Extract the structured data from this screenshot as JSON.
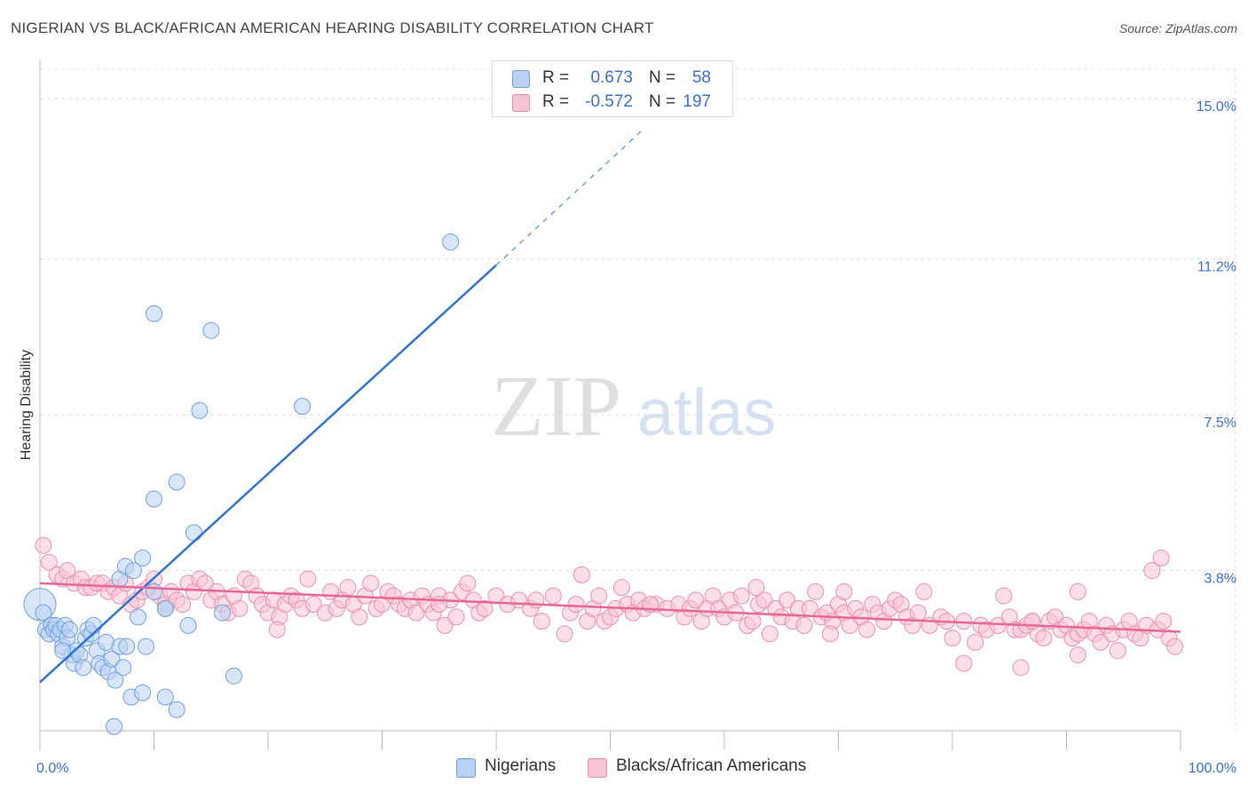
{
  "title": "NIGERIAN VS BLACK/AFRICAN AMERICAN HEARING DISABILITY CORRELATION CHART",
  "source": "Source: ZipAtlas.com",
  "watermark": {
    "zip": "ZIP",
    "atlas": "atlas"
  },
  "colors": {
    "blue_fill": "#b9d1f3",
    "blue_stroke": "#6f9fdf",
    "blue_line": "#2e74d6",
    "pink_fill": "#f7c4d5",
    "pink_stroke": "#ea8eac",
    "pink_line": "#e8679a",
    "tick_text": "#3a6fd0",
    "grid": "#dddddd"
  },
  "stats": [
    {
      "r_label": "R =",
      "r_value": "0.673",
      "n_label": "N =",
      "n_value": "58"
    },
    {
      "r_label": "R =",
      "r_value": "-0.572",
      "n_label": "N =",
      "n_value": "197"
    }
  ],
  "legend": [
    "Nigerians",
    "Blacks/African Americans"
  ],
  "chart_data": {
    "type": "scatter",
    "title": "NIGERIAN VS BLACK/AFRICAN AMERICAN HEARING DISABILITY CORRELATION CHART",
    "xlabel": "",
    "ylabel": "Hearing Disability",
    "xlim": [
      0,
      100
    ],
    "ylim": [
      0,
      15.7
    ],
    "x_tick_labels": [
      "0.0%",
      "100.0%"
    ],
    "y_ticks": [
      3.8,
      7.5,
      11.2,
      15.0
    ],
    "y_tick_labels": [
      "3.8%",
      "7.5%",
      "11.2%",
      "15.0%"
    ],
    "grid": true,
    "series": [
      {
        "name": "Nigerians",
        "trend": {
          "x0": 0,
          "y0": 1.15,
          "x1": 40,
          "y1": 11.05,
          "dash_to_x": 53,
          "dash_to_y": 14.3
        },
        "points": [
          [
            0,
            3.0
          ],
          [
            0.3,
            2.8
          ],
          [
            0.5,
            2.4
          ],
          [
            0.8,
            2.3
          ],
          [
            1.0,
            2.5
          ],
          [
            1.2,
            2.4
          ],
          [
            1.4,
            2.5
          ],
          [
            1.6,
            2.3
          ],
          [
            1.8,
            2.4
          ],
          [
            2.0,
            2.0
          ],
          [
            2.2,
            2.5
          ],
          [
            2.4,
            2.2
          ],
          [
            2.6,
            2.4
          ],
          [
            2.8,
            1.8
          ],
          [
            3.0,
            1.6
          ],
          [
            3.2,
            1.9
          ],
          [
            3.5,
            1.8
          ],
          [
            3.8,
            1.5
          ],
          [
            4.0,
            2.2
          ],
          [
            4.2,
            2.4
          ],
          [
            4.5,
            2.3
          ],
          [
            4.7,
            2.5
          ],
          [
            5.0,
            1.9
          ],
          [
            5.2,
            1.6
          ],
          [
            5.5,
            1.5
          ],
          [
            5.8,
            2.1
          ],
          [
            6.0,
            1.4
          ],
          [
            6.3,
            1.7
          ],
          [
            6.6,
            1.2
          ],
          [
            7.0,
            2.0
          ],
          [
            7.3,
            1.5
          ],
          [
            7.6,
            2.0
          ],
          [
            8.0,
            0.8
          ],
          [
            7.0,
            3.6
          ],
          [
            7.5,
            3.9
          ],
          [
            8.2,
            3.8
          ],
          [
            8.6,
            2.7
          ],
          [
            9.0,
            0.9
          ],
          [
            9.3,
            2.0
          ],
          [
            10.0,
            3.3
          ],
          [
            11.0,
            0.8
          ],
          [
            12.0,
            0.5
          ],
          [
            9.0,
            4.1
          ],
          [
            10.0,
            5.5
          ],
          [
            11.0,
            2.9
          ],
          [
            11.0,
            2.9
          ],
          [
            12.0,
            5.9
          ],
          [
            13.0,
            2.5
          ],
          [
            13.5,
            4.7
          ],
          [
            14.0,
            7.6
          ],
          [
            16.0,
            2.8
          ],
          [
            17.0,
            1.3
          ],
          [
            15.0,
            9.5
          ],
          [
            10.0,
            9.9
          ],
          [
            23.0,
            7.7
          ],
          [
            36.0,
            11.6
          ],
          [
            6.5,
            0.1
          ],
          [
            2.0,
            1.9
          ]
        ]
      },
      {
        "name": "Blacks/African Americans",
        "trend": {
          "x0": 0,
          "y0": 3.5,
          "x1": 100,
          "y1": 2.35
        },
        "points": [
          [
            0.3,
            4.4
          ],
          [
            0.8,
            4.0
          ],
          [
            1.5,
            3.7
          ],
          [
            2.0,
            3.6
          ],
          [
            2.4,
            3.8
          ],
          [
            3.0,
            3.5
          ],
          [
            3.6,
            3.6
          ],
          [
            4.0,
            3.4
          ],
          [
            4.5,
            3.4
          ],
          [
            5.0,
            3.5
          ],
          [
            5.5,
            3.5
          ],
          [
            6.0,
            3.3
          ],
          [
            6.5,
            3.4
          ],
          [
            7.0,
            3.2
          ],
          [
            7.5,
            3.5
          ],
          [
            8.0,
            3.0
          ],
          [
            8.5,
            3.1
          ],
          [
            9.0,
            3.3
          ],
          [
            9.5,
            3.4
          ],
          [
            10.0,
            3.6
          ],
          [
            10.5,
            3.2
          ],
          [
            11.0,
            3.0
          ],
          [
            11.5,
            3.3
          ],
          [
            12.0,
            3.1
          ],
          [
            12.5,
            3.0
          ],
          [
            13.0,
            3.5
          ],
          [
            13.5,
            3.3
          ],
          [
            14.0,
            3.6
          ],
          [
            14.5,
            3.5
          ],
          [
            15.0,
            3.1
          ],
          [
            15.5,
            3.3
          ],
          [
            16.0,
            3.0
          ],
          [
            16.5,
            2.8
          ],
          [
            17.0,
            3.2
          ],
          [
            17.5,
            2.9
          ],
          [
            18.0,
            3.6
          ],
          [
            18.5,
            3.5
          ],
          [
            19.0,
            3.2
          ],
          [
            19.5,
            3.0
          ],
          [
            20.0,
            2.8
          ],
          [
            20.5,
            3.1
          ],
          [
            21.0,
            2.7
          ],
          [
            21.5,
            3.0
          ],
          [
            22.0,
            3.2
          ],
          [
            22.5,
            3.1
          ],
          [
            23.0,
            2.9
          ],
          [
            23.5,
            3.6
          ],
          [
            24.0,
            3.0
          ],
          [
            25.0,
            2.8
          ],
          [
            25.5,
            3.3
          ],
          [
            26.0,
            2.9
          ],
          [
            26.5,
            3.1
          ],
          [
            27.0,
            3.4
          ],
          [
            27.5,
            3.0
          ],
          [
            28.0,
            2.7
          ],
          [
            28.5,
            3.2
          ],
          [
            29.0,
            3.5
          ],
          [
            29.5,
            2.9
          ],
          [
            30.0,
            3.0
          ],
          [
            30.5,
            3.3
          ],
          [
            31.0,
            3.2
          ],
          [
            31.5,
            3.0
          ],
          [
            32.0,
            2.9
          ],
          [
            32.5,
            3.1
          ],
          [
            33.0,
            2.8
          ],
          [
            33.5,
            3.2
          ],
          [
            34.0,
            3.0
          ],
          [
            34.5,
            2.8
          ],
          [
            35.0,
            3.2
          ],
          [
            35.5,
            2.5
          ],
          [
            36.0,
            3.1
          ],
          [
            36.5,
            2.7
          ],
          [
            37.0,
            3.3
          ],
          [
            37.5,
            3.5
          ],
          [
            38.0,
            3.1
          ],
          [
            38.5,
            2.8
          ],
          [
            39.0,
            2.9
          ],
          [
            40.0,
            3.2
          ],
          [
            41.0,
            3.0
          ],
          [
            42.0,
            3.1
          ],
          [
            43.0,
            2.9
          ],
          [
            44.0,
            2.6
          ],
          [
            45.0,
            3.2
          ],
          [
            46.0,
            2.3
          ],
          [
            46.5,
            2.8
          ],
          [
            47.0,
            3.0
          ],
          [
            47.5,
            3.7
          ],
          [
            48.0,
            2.6
          ],
          [
            48.5,
            2.9
          ],
          [
            49.0,
            3.2
          ],
          [
            49.5,
            2.6
          ],
          [
            50.0,
            2.7
          ],
          [
            50.5,
            2.9
          ],
          [
            51.0,
            3.4
          ],
          [
            51.5,
            3.0
          ],
          [
            52.0,
            2.8
          ],
          [
            52.5,
            3.1
          ],
          [
            53.0,
            2.9
          ],
          [
            54.0,
            3.0
          ],
          [
            55.0,
            2.9
          ],
          [
            56.0,
            3.0
          ],
          [
            56.5,
            2.7
          ],
          [
            57.0,
            2.9
          ],
          [
            57.5,
            3.1
          ],
          [
            58.0,
            2.6
          ],
          [
            58.5,
            2.9
          ],
          [
            59.0,
            3.2
          ],
          [
            59.5,
            2.9
          ],
          [
            60.0,
            2.7
          ],
          [
            60.5,
            3.1
          ],
          [
            61.0,
            2.8
          ],
          [
            61.5,
            3.2
          ],
          [
            62.0,
            2.5
          ],
          [
            62.5,
            2.6
          ],
          [
            63.0,
            3.0
          ],
          [
            63.5,
            3.1
          ],
          [
            64.0,
            2.3
          ],
          [
            64.5,
            2.9
          ],
          [
            65.0,
            2.7
          ],
          [
            65.5,
            3.1
          ],
          [
            66.0,
            2.6
          ],
          [
            66.5,
            2.9
          ],
          [
            67.0,
            2.5
          ],
          [
            67.5,
            2.9
          ],
          [
            68.0,
            3.3
          ],
          [
            68.5,
            2.7
          ],
          [
            69.0,
            2.8
          ],
          [
            69.5,
            2.6
          ],
          [
            70.0,
            3.0
          ],
          [
            70.5,
            2.8
          ],
          [
            71.0,
            2.5
          ],
          [
            71.5,
            2.9
          ],
          [
            72.0,
            2.7
          ],
          [
            72.5,
            2.4
          ],
          [
            73.0,
            3.0
          ],
          [
            73.5,
            2.8
          ],
          [
            74.0,
            2.6
          ],
          [
            74.5,
            2.9
          ],
          [
            75.0,
            3.1
          ],
          [
            75.5,
            3.0
          ],
          [
            76.0,
            2.7
          ],
          [
            76.5,
            2.5
          ],
          [
            77.0,
            2.8
          ],
          [
            78.0,
            2.5
          ],
          [
            79.0,
            2.7
          ],
          [
            79.5,
            2.6
          ],
          [
            80.0,
            2.2
          ],
          [
            81.0,
            2.6
          ],
          [
            82.0,
            2.1
          ],
          [
            82.5,
            2.5
          ],
          [
            83.0,
            2.4
          ],
          [
            84.0,
            2.5
          ],
          [
            85.0,
            2.7
          ],
          [
            85.5,
            2.4
          ],
          [
            86.0,
            2.4
          ],
          [
            86.5,
            2.5
          ],
          [
            87.0,
            2.6
          ],
          [
            87.5,
            2.3
          ],
          [
            88.0,
            2.2
          ],
          [
            88.5,
            2.6
          ],
          [
            89.0,
            2.7
          ],
          [
            89.5,
            2.4
          ],
          [
            90.0,
            2.5
          ],
          [
            90.5,
            2.2
          ],
          [
            91.0,
            2.3
          ],
          [
            91.5,
            2.4
          ],
          [
            92.0,
            2.6
          ],
          [
            92.5,
            2.3
          ],
          [
            93.0,
            2.1
          ],
          [
            93.5,
            2.5
          ],
          [
            94.0,
            2.3
          ],
          [
            95.0,
            2.4
          ],
          [
            95.5,
            2.6
          ],
          [
            96.0,
            2.3
          ],
          [
            96.5,
            2.2
          ],
          [
            97.0,
            2.5
          ],
          [
            97.5,
            3.8
          ],
          [
            98.0,
            2.4
          ],
          [
            98.5,
            2.6
          ],
          [
            99.0,
            2.2
          ],
          [
            99.5,
            2.0
          ],
          [
            20.8,
            2.4
          ],
          [
            35.0,
            3.0
          ],
          [
            43.5,
            3.1
          ],
          [
            53.5,
            3.0
          ],
          [
            62.8,
            3.4
          ],
          [
            70.5,
            3.3
          ],
          [
            77.5,
            3.3
          ],
          [
            84.5,
            3.2
          ],
          [
            91.0,
            3.3
          ],
          [
            98.3,
            4.1
          ],
          [
            81.0,
            1.6
          ],
          [
            86.0,
            1.5
          ],
          [
            91.0,
            1.8
          ],
          [
            94.5,
            1.9
          ],
          [
            87.0,
            2.6
          ],
          [
            69.3,
            2.3
          ]
        ]
      }
    ]
  }
}
